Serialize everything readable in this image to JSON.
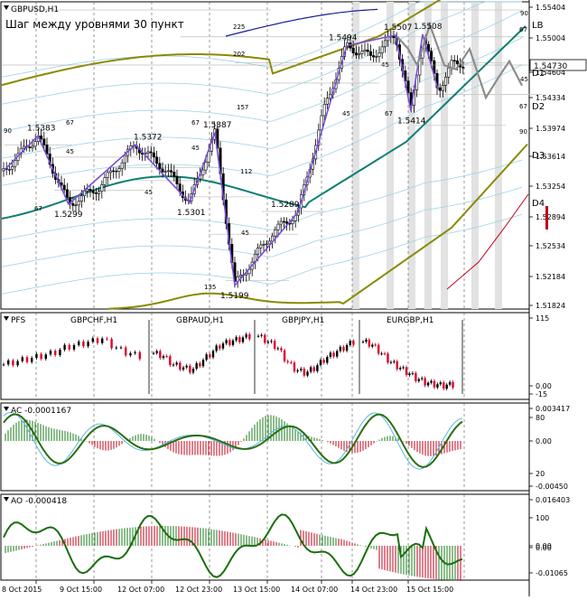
{
  "chart_data": {
    "type": "line",
    "symbol": "GBPUSD,H1",
    "title": "Шаг между уровнями 30 пункт",
    "current_price": "1.54730",
    "price_axis_ticks": [
      "1.55404",
      "1.55004",
      "1.54604",
      "1.54334",
      "1.53974",
      "1.53614",
      "1.53254",
      "1.52894",
      "1.52534",
      "1.52184",
      "1.51824"
    ],
    "ylim": [
      1.517,
      1.5548
    ],
    "right_labels": [
      {
        "text": "LB",
        "price": 1.5505
      },
      {
        "text": "D1",
        "price": 1.5473
      },
      {
        "text": "D2",
        "price": 1.5434
      },
      {
        "text": "D3",
        "price": 1.5367
      },
      {
        "text": "D4",
        "price": 1.529
      }
    ],
    "swing_labels": [
      {
        "text": "1.5383",
        "x": 1,
        "price": 1.5383
      },
      {
        "text": "1.5299",
        "x": 2,
        "price": 1.5299
      },
      {
        "text": "1.5372",
        "x": 3,
        "price": 1.5372
      },
      {
        "text": "1.5301",
        "x": 4,
        "price": 1.5301
      },
      {
        "text": "1.5387",
        "x": 5,
        "price": 1.5387
      },
      {
        "text": "1.5199",
        "x": 6,
        "price": 1.5199
      },
      {
        "text": "1.5289",
        "x": 7,
        "price": 1.5289
      },
      {
        "text": "1.5494",
        "x": 8,
        "price": 1.5494
      },
      {
        "text": "1.5507",
        "x": 9,
        "price": 1.5507
      },
      {
        "text": "1.5414",
        "x": 10,
        "price": 1.5414
      },
      {
        "text": "1.5508",
        "x": 11,
        "price": 1.5508
      }
    ],
    "level_step_labels": [
      "90",
      "67",
      "45",
      "67",
      "45",
      "45",
      "67",
      "45",
      "112",
      "45",
      "135",
      "157",
      "202",
      "225",
      "45",
      "67",
      "90",
      "67",
      "45",
      "67",
      "90"
    ],
    "x_tick_labels": [
      "8 Oct 2015",
      "9 Oct 15:00",
      "12 Oct 07:00",
      "12 Oct 23:00",
      "13 Oct 15:00",
      "14 Oct 07:00",
      "14 Oct 23:00",
      "15 Oct 15:00"
    ],
    "subcharts": [
      {
        "name": "PFS",
        "pairs": [
          "GBPCHF,H1",
          "GBPAUD,H1",
          "GBPJPY,H1",
          "EURGBP,H1"
        ],
        "ticks": [
          "115",
          "0.00",
          "-15"
        ]
      },
      {
        "name": "AC -0.0001167",
        "ticks": [
          "0.003417",
          "80",
          "0.00",
          "20",
          "-0.00450"
        ]
      },
      {
        "name": "AO -0.000418",
        "ticks": [
          "0.016403",
          "100",
          "0.00",
          "0.00",
          "-0.01065"
        ]
      }
    ],
    "colors": {
      "zigzag": "#7b4fd6",
      "ma_teal": "#0e7f73",
      "ma_olive": "#8a8a00",
      "ma_navy": "#1a1a9a",
      "channel_lightblue": "#9fd3e6",
      "forecast_gray": "#8c8c8c",
      "bear_red": "#c0001a",
      "price_label_bg": "#e8e8e8"
    }
  }
}
